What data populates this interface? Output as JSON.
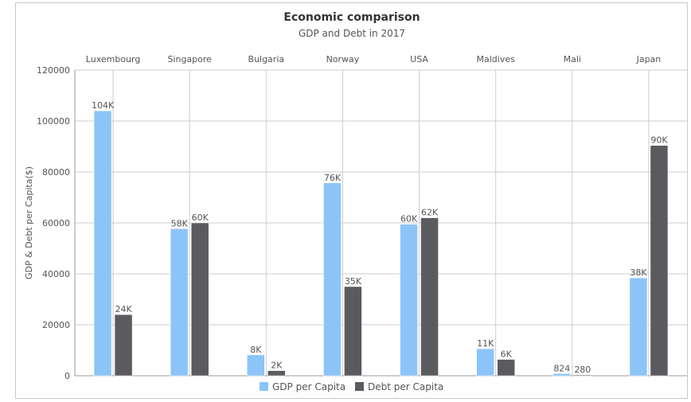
{
  "chart_data": {
    "type": "bar",
    "title": "Economic comparison",
    "subtitle": "GDP and Debt in 2017",
    "ylabel": "GDP & Debt per Capita($)",
    "xlabel": "",
    "categories": [
      "Luxembourg",
      "Singapore",
      "Bulgaria",
      "Norway",
      "USA",
      "Maldives",
      "Mali",
      "Japan"
    ],
    "ylim": [
      0,
      120000
    ],
    "yticks": [
      0,
      20000,
      40000,
      60000,
      80000,
      100000,
      120000
    ],
    "grid": true,
    "category_axis_position": "top",
    "legend_position": "bottom-center",
    "series": [
      {
        "name": "GDP per Capita",
        "color": "#8CC4F8",
        "values": [
          104000,
          57700,
          8200,
          75700,
          59500,
          10600,
          824,
          38400
        ],
        "labels": [
          "104K",
          "58K",
          "8K",
          "76K",
          "60K",
          "11K",
          "824",
          "38K"
        ]
      },
      {
        "name": "Debt per Capita",
        "color": "#5B5A5F",
        "values": [
          24000,
          60000,
          2000,
          35000,
          62000,
          6400,
          280,
          90400
        ],
        "labels": [
          "24K",
          "60K",
          "2K",
          "35K",
          "62K",
          "6K",
          "280",
          "90K"
        ]
      }
    ]
  }
}
